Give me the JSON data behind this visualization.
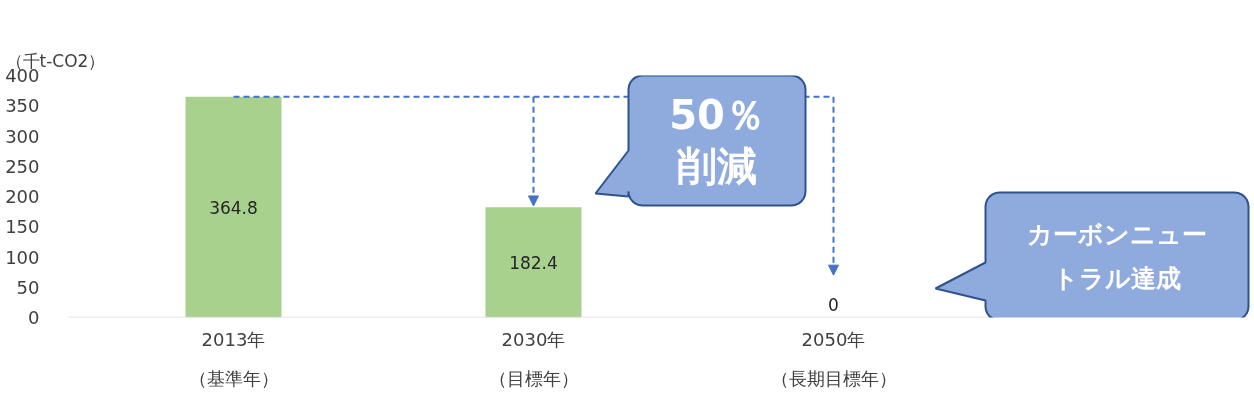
{
  "chart_data": {
    "type": "bar",
    "ylabel": "（千t-CO2）",
    "categories": [
      "2013年（基準年）",
      "2030年（目標年）",
      "2050年（長期目標年）"
    ],
    "values": [
      364.8,
      182.4,
      0
    ],
    "color": "#a9d18e",
    "ylim": [
      0,
      400
    ],
    "yticks": [
      0,
      50,
      100,
      150,
      200,
      250,
      300,
      350,
      400
    ],
    "grid": false,
    "data_labels": true,
    "ref_lines": [
      {
        "axis": "y",
        "value": 364.8,
        "color": "#4472c4",
        "line_style": "dashed"
      }
    ],
    "annotations": [
      "50％削減",
      "カーボンニュートラル達成"
    ]
  }
}
